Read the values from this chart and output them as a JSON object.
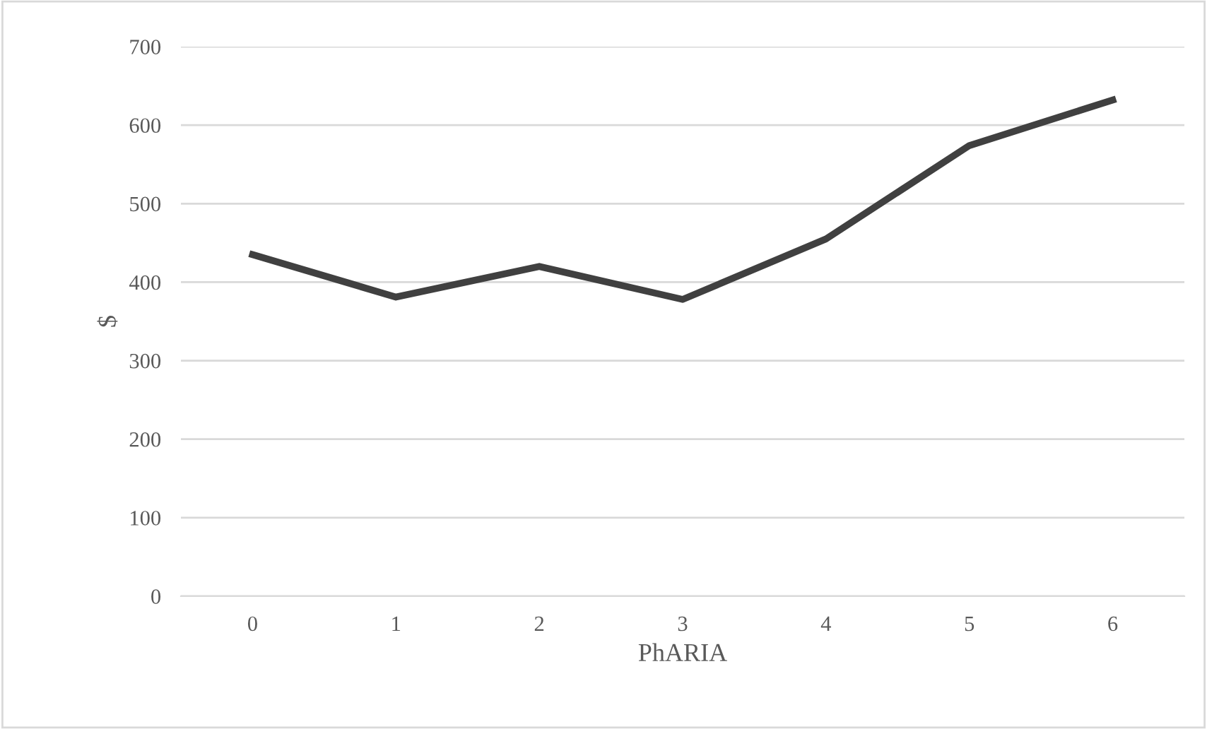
{
  "chart_data": {
    "type": "line",
    "xlabel": "PhARIA",
    "ylabel": "$",
    "categories": [
      "0",
      "1",
      "2",
      "3",
      "4",
      "5",
      "6"
    ],
    "series": [
      {
        "color": "#404040",
        "values": [
          435,
          381,
          420,
          378,
          455,
          574,
          632
        ]
      }
    ],
    "ylim": [
      0,
      700
    ],
    "yticks": [
      0,
      100,
      200,
      300,
      400,
      500,
      600,
      700
    ],
    "grid": "y",
    "legend": false,
    "marker": "none",
    "line_style": "solid"
  }
}
